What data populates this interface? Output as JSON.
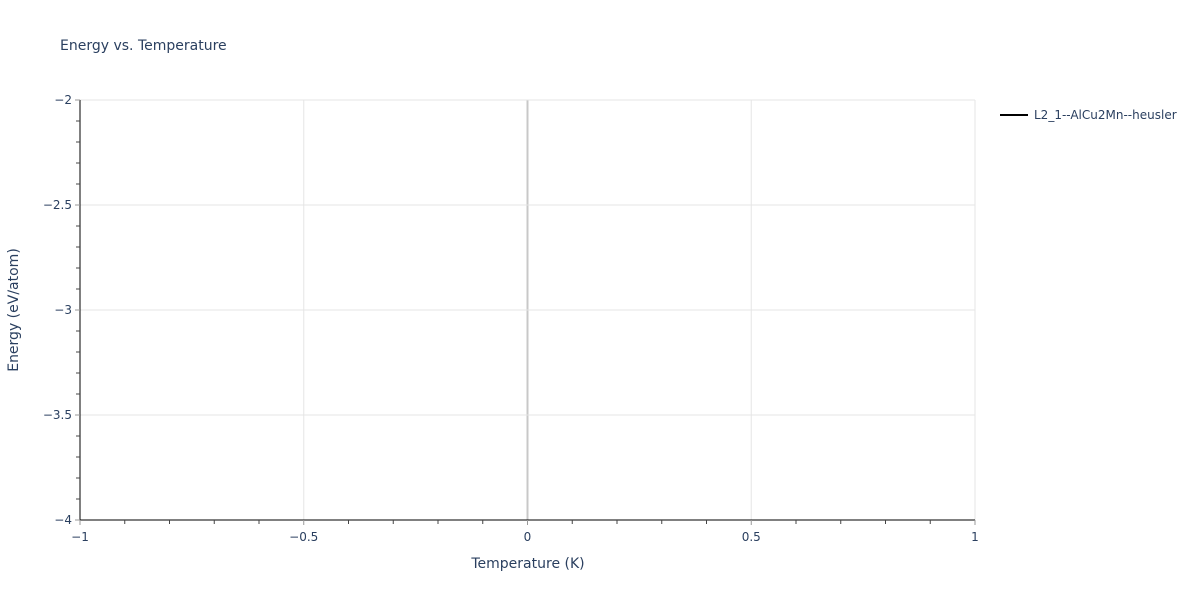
{
  "chart_data": {
    "type": "line",
    "title": "Energy vs. Temperature",
    "xlabel": "Temperature (K)",
    "ylabel": "Energy (eV/atom)",
    "xlim": [
      -1,
      1
    ],
    "ylim": [
      -4,
      -2
    ],
    "x_ticks": [
      -1,
      -0.5,
      0,
      0.5,
      1
    ],
    "x_tick_labels": [
      "−1",
      "−0.5",
      "0",
      "0.5",
      "1"
    ],
    "y_ticks": [
      -2,
      -2.5,
      -3,
      -3.5,
      -4
    ],
    "y_tick_labels": [
      "−2",
      "−2.5",
      "−3",
      "−3.5",
      "−4"
    ],
    "grid": true,
    "legend_position": "top-right",
    "series": [
      {
        "name": "L2_1--AlCu2Mn--heusler",
        "color": "#000000",
        "x": [],
        "y": []
      }
    ]
  }
}
